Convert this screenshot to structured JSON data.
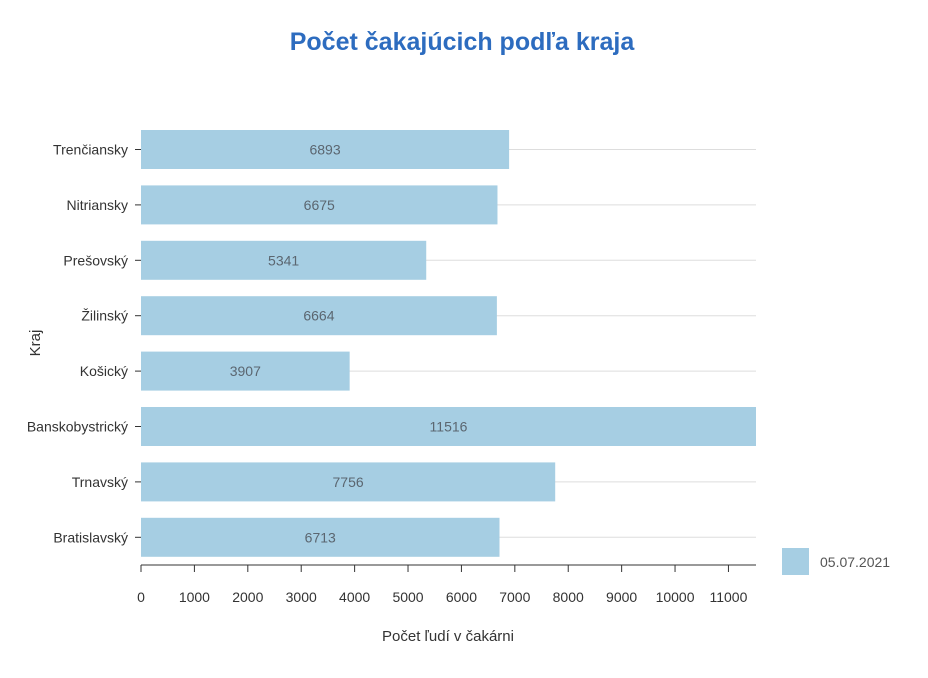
{
  "chart_data": {
    "type": "bar",
    "orientation": "horizontal",
    "title": "Počet čakajúcich podľa kraja",
    "xlabel": "Počet ľudí v čakárni",
    "ylabel": "Kraj",
    "categories": [
      "Trenčiansky",
      "Nitriansky",
      "Prešovský",
      "Žilinský",
      "Košický",
      "Banskobystrický",
      "Trnavský",
      "Bratislavský"
    ],
    "series": [
      {
        "name": "05.07.2021",
        "values": [
          6893,
          6675,
          5341,
          6664,
          3907,
          11516,
          7756,
          6713
        ],
        "color": "#a6cee3"
      }
    ],
    "xlim": [
      0,
      11516
    ],
    "xticks": [
      0,
      1000,
      2000,
      3000,
      4000,
      5000,
      6000,
      7000,
      8000,
      9000,
      10000,
      11000
    ],
    "grid": true,
    "legend_position": "bottom-right",
    "data_labels": true
  }
}
